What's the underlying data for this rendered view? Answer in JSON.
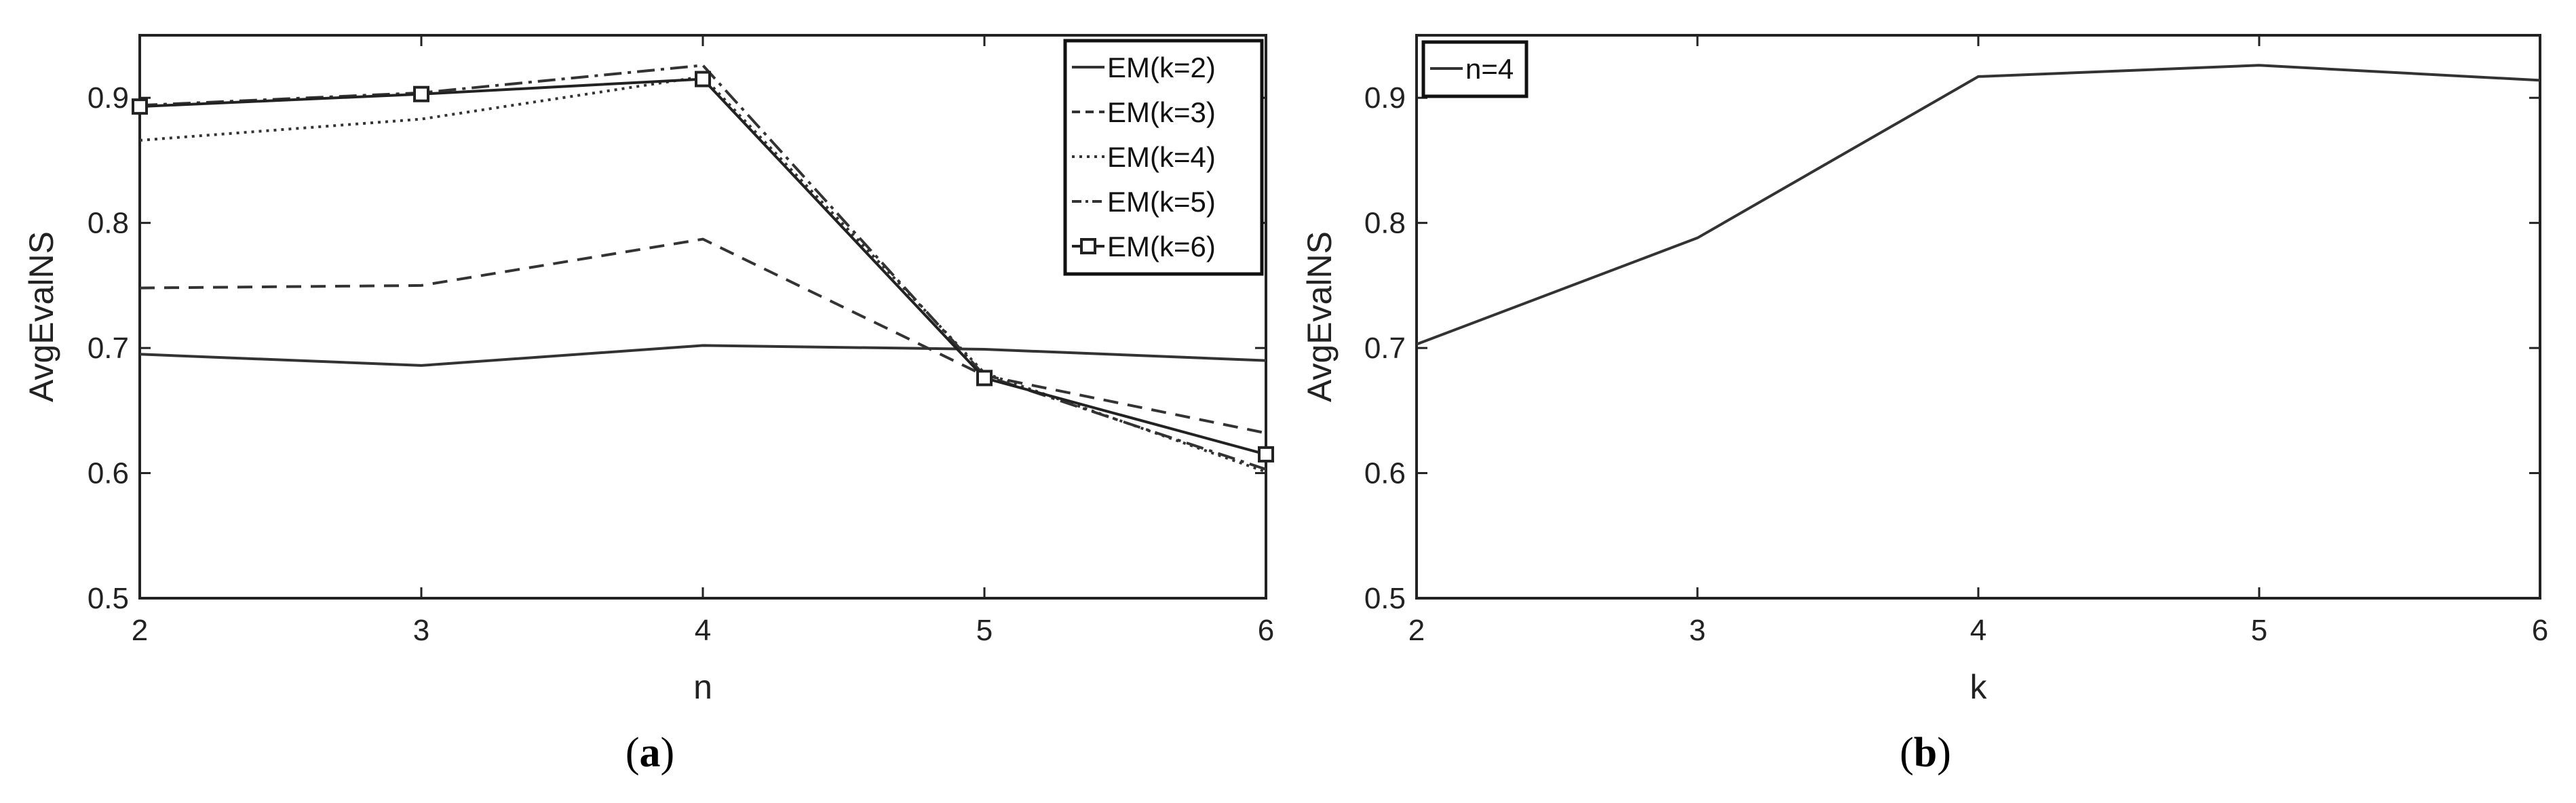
{
  "chart_data": [
    {
      "type": "line",
      "caption_open": "(",
      "caption_letter": "a",
      "caption_close": ")",
      "title": "",
      "xlabel": "n",
      "ylabel": "AvgEvalNS",
      "x": [
        2,
        3,
        4,
        5,
        6
      ],
      "xlim": [
        2,
        6
      ],
      "ylim": [
        0.5,
        0.95
      ],
      "xticks": [
        "2",
        "3",
        "4",
        "5",
        "6"
      ],
      "yticks": [
        "0.5",
        "0.6",
        "0.7",
        "0.8",
        "0.9"
      ],
      "legend_position": "top-right",
      "grid": false,
      "series": [
        {
          "name": "EM(k=2)",
          "values": [
            0.695,
            0.686,
            0.702,
            0.699,
            0.69
          ],
          "dash": "solid",
          "marker": "none",
          "color": "#333333"
        },
        {
          "name": "EM(k=3)",
          "values": [
            0.748,
            0.75,
            0.787,
            0.678,
            0.632
          ],
          "dash": "dashed",
          "marker": "none",
          "color": "#333333"
        },
        {
          "name": "EM(k=4)",
          "values": [
            0.866,
            0.883,
            0.917,
            0.68,
            0.601
          ],
          "dash": "dotted",
          "marker": "none",
          "color": "#333333"
        },
        {
          "name": "EM(k=5)",
          "values": [
            0.894,
            0.904,
            0.926,
            0.678,
            0.603
          ],
          "dash": "dashdot",
          "marker": "none",
          "color": "#333333"
        },
        {
          "name": "EM(k=6)",
          "values": [
            0.893,
            0.903,
            0.915,
            0.676,
            0.615
          ],
          "dash": "solid",
          "marker": "square",
          "color": "#222222"
        }
      ]
    },
    {
      "type": "line",
      "caption_open": "(",
      "caption_letter": "b",
      "caption_close": ")",
      "title": "",
      "xlabel": "k",
      "ylabel": "AvgEvalNS",
      "x": [
        2,
        3,
        4,
        5,
        6
      ],
      "xlim": [
        2,
        6
      ],
      "ylim": [
        0.5,
        0.95
      ],
      "xticks": [
        "2",
        "3",
        "4",
        "5",
        "6"
      ],
      "yticks": [
        "0.5",
        "0.6",
        "0.7",
        "0.8",
        "0.9"
      ],
      "legend_position": "top-left",
      "grid": false,
      "series": [
        {
          "name": "n=4",
          "values": [
            0.703,
            0.788,
            0.917,
            0.926,
            0.914
          ],
          "dash": "solid",
          "marker": "none",
          "color": "#333333"
        }
      ]
    }
  ]
}
